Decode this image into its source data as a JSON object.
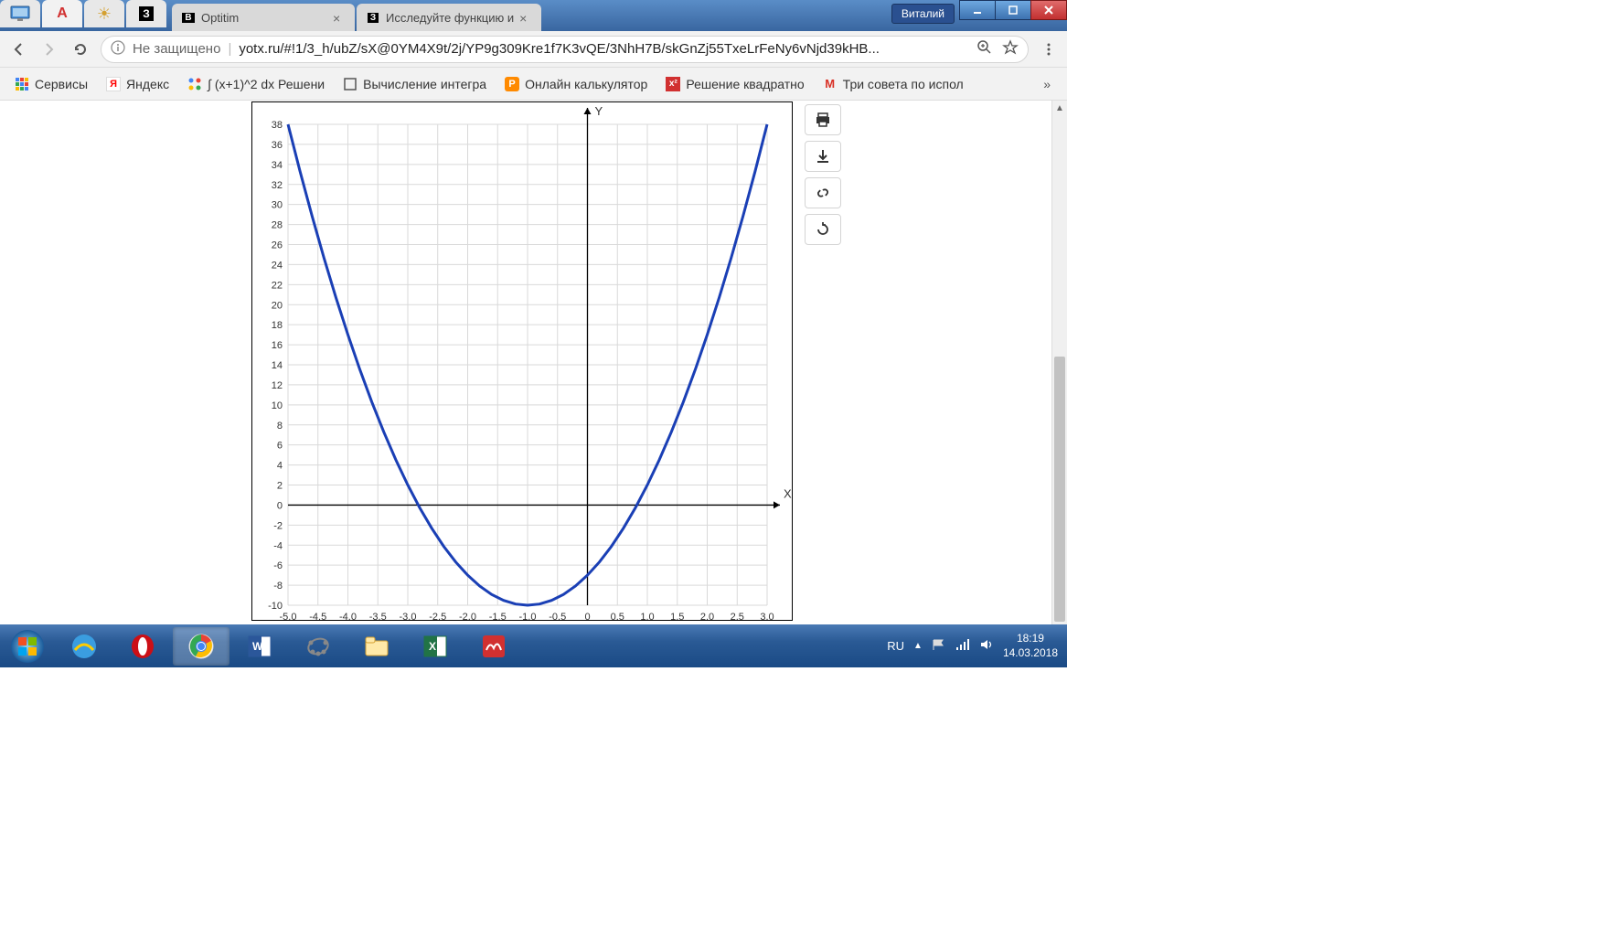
{
  "window": {
    "user_label": "Виталий"
  },
  "tabs": [
    {
      "title": "Optitim",
      "icon": "B",
      "icon_bg": "#000"
    },
    {
      "title": "Исследуйте функцию и",
      "icon": "З",
      "icon_bg": "#000"
    }
  ],
  "address": {
    "security": "Не защищено",
    "url": "yotx.ru/#!1/3_h/ubZ/sX@0YM4X9t/2j/YP9g309Kre1f7K3vQE/3NhH7B/skGnZj55TxeLrFeNy6vNjd39kHB..."
  },
  "bookmarks": [
    {
      "label": "Сервисы",
      "icon": "apps"
    },
    {
      "label": "Яндекс",
      "icon": "Я",
      "icon_bg": "#ffdb4d"
    },
    {
      "label": "∫ (x+1)^2 dx Решени",
      "icon": "dots"
    },
    {
      "label": "Вычисление интегра",
      "icon": "box"
    },
    {
      "label": "Онлайн калькулятор",
      "icon": "P",
      "icon_bg": "#ff8a00"
    },
    {
      "label": "Решение квадратно",
      "icon": "x²",
      "icon_bg": "#d13030"
    },
    {
      "label": "Три совета по испол",
      "icon": "M",
      "icon_bg": "#fff"
    }
  ],
  "chart": {
    "type": "line",
    "x_label": "X",
    "y_label": "Y",
    "xlim": [
      -5.0,
      3.0
    ],
    "ylim": [
      -10,
      38
    ],
    "x_ticks": [
      -5.0,
      -4.5,
      -4.0,
      -3.5,
      -3.0,
      -2.5,
      -2.0,
      -1.5,
      -1.0,
      -0.5,
      0,
      0.5,
      1.0,
      1.5,
      2.0,
      2.5,
      3.0
    ],
    "y_ticks": [
      -10,
      -8,
      -6,
      -4,
      -2,
      0,
      2,
      4,
      6,
      8,
      10,
      12,
      14,
      16,
      18,
      20,
      22,
      24,
      26,
      28,
      30,
      32,
      34,
      36,
      38
    ],
    "x_tick_labels": [
      "-5.0",
      "-4.5",
      "-4.0",
      "-3.5",
      "-3.0",
      "-2.5",
      "-2.0",
      "-1.5",
      "-1.0",
      "-0.5",
      "0",
      "0.5",
      "1.0",
      "1.5",
      "2.0",
      "2.5",
      "3.0"
    ],
    "y_tick_labels": [
      "-10",
      "-8",
      "-6",
      "-4",
      "-2",
      "0",
      "2",
      "4",
      "6",
      "8",
      "10",
      "12",
      "14",
      "16",
      "18",
      "20",
      "22",
      "24",
      "26",
      "28",
      "30",
      "32",
      "34",
      "36",
      "38"
    ],
    "curve_color": "#1a3fb5",
    "curve_width": 3,
    "grid_color": "#d9d9d9",
    "axis_color": "#000000",
    "tick_fontsize": 11,
    "label_fontsize": 13,
    "background_color": "#ffffff",
    "function": "3*(x+1)^2 - 10",
    "points": [
      [
        -5.0,
        38.0
      ],
      [
        -4.8,
        33.32
      ],
      [
        -4.6,
        28.88
      ],
      [
        -4.4,
        24.68
      ],
      [
        -4.2,
        20.72
      ],
      [
        -4.0,
        17.0
      ],
      [
        -3.8,
        13.52
      ],
      [
        -3.6,
        10.28
      ],
      [
        -3.4,
        7.28
      ],
      [
        -3.2,
        4.52
      ],
      [
        -3.0,
        2.0
      ],
      [
        -2.8,
        -0.28
      ],
      [
        -2.6,
        -2.32
      ],
      [
        -2.4,
        -4.12
      ],
      [
        -2.2,
        -5.68
      ],
      [
        -2.0,
        -7.0
      ],
      [
        -1.8,
        -8.08
      ],
      [
        -1.6,
        -8.92
      ],
      [
        -1.4,
        -9.52
      ],
      [
        -1.2,
        -9.88
      ],
      [
        -1.0,
        -10.0
      ],
      [
        -0.8,
        -9.88
      ],
      [
        -0.6,
        -9.52
      ],
      [
        -0.4,
        -8.92
      ],
      [
        -0.2,
        -8.08
      ],
      [
        0.0,
        -7.0
      ],
      [
        0.2,
        -5.68
      ],
      [
        0.4,
        -4.12
      ],
      [
        0.6,
        -2.32
      ],
      [
        0.8,
        -0.28
      ],
      [
        1.0,
        2.0
      ],
      [
        1.2,
        4.52
      ],
      [
        1.4,
        7.28
      ],
      [
        1.6,
        10.28
      ],
      [
        1.8,
        13.52
      ],
      [
        2.0,
        17.0
      ],
      [
        2.2,
        20.72
      ],
      [
        2.4,
        24.68
      ],
      [
        2.6,
        28.88
      ],
      [
        2.8,
        33.32
      ],
      [
        3.0,
        38.0
      ]
    ]
  },
  "tray": {
    "lang": "RU",
    "time": "18:19",
    "date": "14.03.2018"
  }
}
